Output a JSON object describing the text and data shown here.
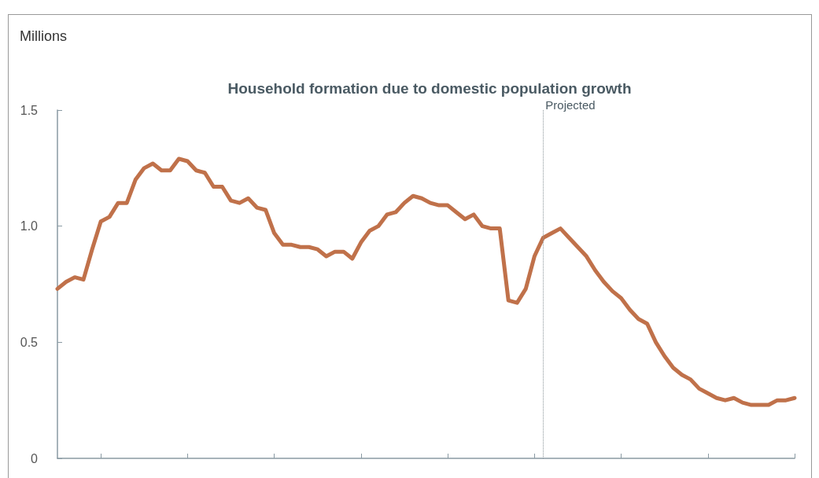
{
  "chart_data": {
    "type": "line",
    "title": "Household formation due to domestic population growth",
    "ylabel": "Millions",
    "categories": [
      null,
      null,
      null,
      null,
      null,
      null,
      null,
      null,
      null,
      null,
      null,
      null,
      null,
      null,
      null,
      null,
      null,
      null,
      null,
      null,
      null,
      null,
      null,
      null,
      null,
      null,
      null,
      null,
      null,
      null,
      null,
      null,
      null,
      null,
      null,
      null,
      null,
      null,
      null,
      null,
      null,
      null,
      null,
      null,
      null,
      null,
      null,
      null,
      null,
      null,
      null,
      null,
      null,
      null,
      null,
      null,
      null,
      null,
      null,
      null,
      null,
      null,
      null,
      null,
      null,
      null,
      null,
      null,
      null,
      null,
      null,
      null,
      null,
      null,
      null,
      null,
      null,
      null,
      null,
      null,
      null,
      null,
      null,
      null,
      null,
      null
    ],
    "series": [
      {
        "color": "#c0714a",
        "values": [
          0.73,
          0.76,
          0.78,
          0.77,
          0.9,
          1.02,
          1.04,
          1.1,
          1.1,
          1.2,
          1.25,
          1.27,
          1.24,
          1.24,
          1.29,
          1.28,
          1.24,
          1.23,
          1.17,
          1.17,
          1.11,
          1.1,
          1.12,
          1.08,
          1.07,
          0.97,
          0.92,
          0.92,
          0.91,
          0.91,
          0.9,
          0.87,
          0.89,
          0.89,
          0.86,
          0.93,
          0.98,
          1.0,
          1.05,
          1.06,
          1.1,
          1.13,
          1.12,
          1.1,
          1.09,
          1.09,
          1.06,
          1.03,
          1.05,
          1.0,
          0.99,
          0.99,
          0.68,
          0.67,
          0.73,
          0.87,
          0.95,
          0.97,
          0.99,
          0.95,
          0.91,
          0.87,
          0.81,
          0.76,
          0.72,
          0.69,
          0.64,
          0.6,
          0.58,
          0.5,
          0.44,
          0.39,
          0.36,
          0.34,
          0.3,
          0.28,
          0.26,
          0.25,
          0.26,
          0.24,
          0.23,
          0.23,
          0.23,
          0.25,
          0.25,
          0.26
        ]
      }
    ],
    "ylim": [
      0,
      1.5
    ],
    "yticks": [
      0,
      0.5,
      {
        "value": 1,
        "label": "1.0"
      },
      1.5
    ],
    "annotations": [
      "Projected"
    ],
    "tick_labels": "y",
    "grid": false,
    "marker": "none",
    "line_style": "solid"
  }
}
